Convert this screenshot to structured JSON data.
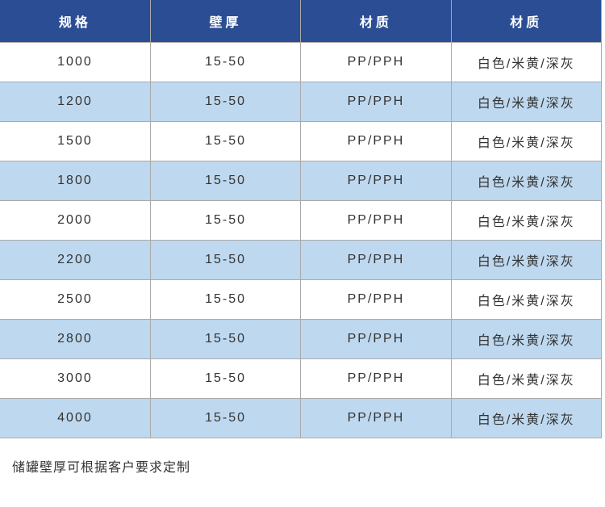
{
  "table": {
    "headers": [
      {
        "label": "规格"
      },
      {
        "label": "壁厚"
      },
      {
        "label": "材质"
      },
      {
        "label": "材质"
      }
    ],
    "rows": [
      {
        "spec": "1000",
        "thickness": "15-50",
        "material": "PP/PPH",
        "color": "白色/米黄/深灰"
      },
      {
        "spec": "1200",
        "thickness": "15-50",
        "material": "PP/PPH",
        "color": "白色/米黄/深灰"
      },
      {
        "spec": "1500",
        "thickness": "15-50",
        "material": "PP/PPH",
        "color": "白色/米黄/深灰"
      },
      {
        "spec": "1800",
        "thickness": "15-50",
        "material": "PP/PPH",
        "color": "白色/米黄/深灰"
      },
      {
        "spec": "2000",
        "thickness": "15-50",
        "material": "PP/PPH",
        "color": "白色/米黄/深灰"
      },
      {
        "spec": "2200",
        "thickness": "15-50",
        "material": "PP/PPH",
        "color": "白色/米黄/深灰"
      },
      {
        "spec": "2500",
        "thickness": "15-50",
        "material": "PP/PPH",
        "color": "白色/米黄/深灰"
      },
      {
        "spec": "2800",
        "thickness": "15-50",
        "material": "PP/PPH",
        "color": "白色/米黄/深灰"
      },
      {
        "spec": "3000",
        "thickness": "15-50",
        "material": "PP/PPH",
        "color": "白色/米黄/深灰"
      },
      {
        "spec": "4000",
        "thickness": "15-50",
        "material": "PP/PPH",
        "color": "白色/米黄/深灰"
      }
    ]
  },
  "footer": {
    "note": "储罐壁厚可根据客户要求定制"
  },
  "colors": {
    "header_bg": "#2a4d93",
    "header_text": "#ffffff",
    "row_alt_bg": "#bed8ef",
    "border": "#aaaaaa",
    "body_text": "#333333"
  }
}
